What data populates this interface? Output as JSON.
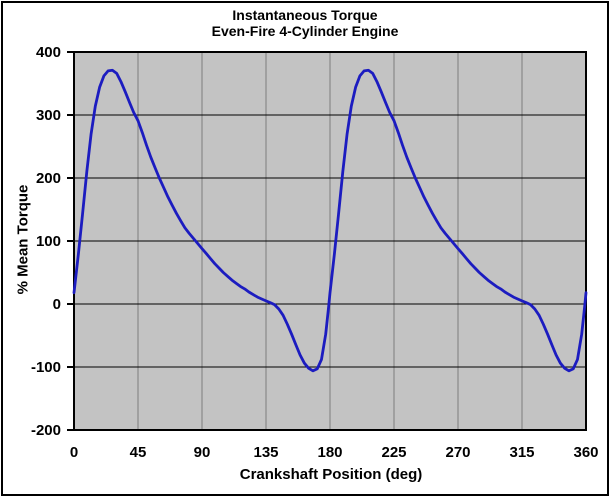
{
  "window": {
    "background": "#ffffff",
    "border_color": "#000000"
  },
  "chart_data": {
    "type": "line",
    "title": "Instantaneous Torque",
    "subtitle": "Even-Fire 4-Cylinder Engine",
    "xlabel": "Crankshaft Position (deg)",
    "ylabel": "% Mean Torque",
    "xlim": [
      0,
      360
    ],
    "ylim": [
      -200,
      400
    ],
    "xticks": [
      0,
      45,
      90,
      135,
      180,
      225,
      270,
      315,
      360
    ],
    "yticks": [
      400,
      300,
      200,
      100,
      0,
      -100,
      -200
    ],
    "grid": true,
    "legend": "none",
    "plot_bg_color": "#c3c3c3",
    "h_grid_color": "#000000",
    "v_grid_color": "#888888",
    "axis_color": "#000000",
    "series": [
      {
        "name": "instantaneous-torque-percent-of-mean",
        "color": "#1c1cc0",
        "points": [
          [
            0,
            18
          ],
          [
            3,
            78
          ],
          [
            6,
            142
          ],
          [
            9,
            210
          ],
          [
            12,
            270
          ],
          [
            15,
            314
          ],
          [
            18,
            344
          ],
          [
            21,
            362
          ],
          [
            24,
            370
          ],
          [
            27,
            371
          ],
          [
            30,
            366
          ],
          [
            33,
            353
          ],
          [
            36,
            337
          ],
          [
            39,
            320
          ],
          [
            42,
            304
          ],
          [
            45,
            291
          ],
          [
            48,
            272
          ],
          [
            51,
            252
          ],
          [
            54,
            233
          ],
          [
            57,
            216
          ],
          [
            60,
            200
          ],
          [
            63,
            185
          ],
          [
            66,
            170
          ],
          [
            69,
            157
          ],
          [
            72,
            144
          ],
          [
            75,
            132
          ],
          [
            78,
            121
          ],
          [
            81,
            112
          ],
          [
            84,
            104
          ],
          [
            87,
            96
          ],
          [
            90,
            88
          ],
          [
            93,
            80
          ],
          [
            96,
            72
          ],
          [
            99,
            64
          ],
          [
            102,
            57
          ],
          [
            105,
            50
          ],
          [
            108,
            44
          ],
          [
            111,
            38
          ],
          [
            114,
            33
          ],
          [
            117,
            28
          ],
          [
            120,
            24
          ],
          [
            123,
            19
          ],
          [
            126,
            15
          ],
          [
            129,
            11
          ],
          [
            132,
            8
          ],
          [
            135,
            5
          ],
          [
            138,
            2
          ],
          [
            141,
            -1
          ],
          [
            144,
            -8
          ],
          [
            147,
            -18
          ],
          [
            150,
            -32
          ],
          [
            153,
            -48
          ],
          [
            156,
            -65
          ],
          [
            159,
            -81
          ],
          [
            162,
            -94
          ],
          [
            165,
            -102
          ],
          [
            168,
            -106
          ],
          [
            171,
            -103
          ],
          [
            174,
            -88
          ],
          [
            177,
            -48
          ],
          [
            179,
            -5
          ],
          [
            180,
            18
          ],
          [
            183,
            78
          ],
          [
            186,
            142
          ],
          [
            189,
            210
          ],
          [
            192,
            270
          ],
          [
            195,
            314
          ],
          [
            198,
            344
          ],
          [
            201,
            362
          ],
          [
            204,
            370
          ],
          [
            207,
            371
          ],
          [
            210,
            366
          ],
          [
            213,
            353
          ],
          [
            216,
            337
          ],
          [
            219,
            320
          ],
          [
            222,
            304
          ],
          [
            225,
            291
          ],
          [
            228,
            272
          ],
          [
            231,
            252
          ],
          [
            234,
            233
          ],
          [
            237,
            216
          ],
          [
            240,
            200
          ],
          [
            243,
            185
          ],
          [
            246,
            170
          ],
          [
            249,
            157
          ],
          [
            252,
            144
          ],
          [
            255,
            132
          ],
          [
            258,
            121
          ],
          [
            261,
            112
          ],
          [
            264,
            104
          ],
          [
            267,
            96
          ],
          [
            270,
            88
          ],
          [
            273,
            80
          ],
          [
            276,
            72
          ],
          [
            279,
            64
          ],
          [
            282,
            57
          ],
          [
            285,
            50
          ],
          [
            288,
            44
          ],
          [
            291,
            38
          ],
          [
            294,
            33
          ],
          [
            297,
            28
          ],
          [
            300,
            24
          ],
          [
            303,
            19
          ],
          [
            306,
            15
          ],
          [
            309,
            11
          ],
          [
            312,
            8
          ],
          [
            315,
            5
          ],
          [
            318,
            2
          ],
          [
            321,
            -1
          ],
          [
            324,
            -8
          ],
          [
            327,
            -18
          ],
          [
            330,
            -32
          ],
          [
            333,
            -48
          ],
          [
            336,
            -65
          ],
          [
            339,
            -81
          ],
          [
            342,
            -94
          ],
          [
            345,
            -102
          ],
          [
            348,
            -106
          ],
          [
            351,
            -103
          ],
          [
            354,
            -88
          ],
          [
            357,
            -48
          ],
          [
            359,
            -5
          ],
          [
            360,
            18
          ]
        ]
      }
    ]
  }
}
